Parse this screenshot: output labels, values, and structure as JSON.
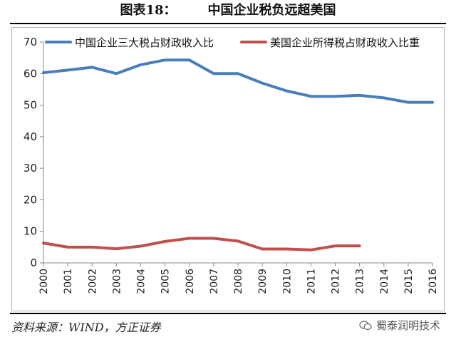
{
  "header": {
    "figure_label": "图表18：",
    "title": "中国企业税负远超美国"
  },
  "footer": {
    "source": "资料来源：WIND，方正证券",
    "watermark": "蜀泰润明技术"
  },
  "chart_data": {
    "type": "line",
    "x": [
      "2000",
      "2001",
      "2002",
      "2003",
      "2004",
      "2005",
      "2006",
      "2007",
      "2008",
      "2009",
      "2010",
      "2011",
      "2012",
      "2013",
      "2014",
      "2015",
      "2016"
    ],
    "ylim": [
      0,
      70
    ],
    "yticks": [
      0,
      10,
      20,
      30,
      40,
      50,
      60,
      70
    ],
    "grid": false,
    "legend_position": "top",
    "series": [
      {
        "name": "中国企业三大税占财政收入比",
        "color": "#4a7ebb",
        "values": [
          60.3,
          61.1,
          62.0,
          60.0,
          62.8,
          64.3,
          64.3,
          60.0,
          60.0,
          57.0,
          54.5,
          52.8,
          52.8,
          53.1,
          52.3,
          50.9,
          50.9
        ]
      },
      {
        "name": "美国企业所得税占财政收入比重",
        "color": "#c0504d",
        "values": [
          6.3,
          5.0,
          5.0,
          4.5,
          5.3,
          6.8,
          7.8,
          7.8,
          6.9,
          4.4,
          4.4,
          4.1,
          5.4,
          5.4,
          null,
          null,
          null
        ]
      }
    ]
  }
}
